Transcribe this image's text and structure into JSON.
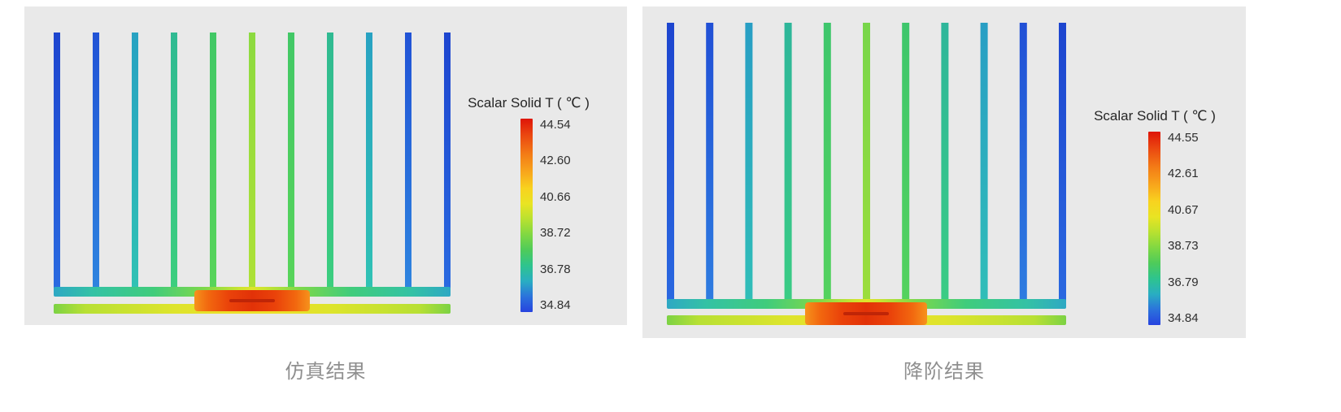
{
  "style": {
    "panel_background": "#e9e9e9",
    "caption_color": "#8f8f8f",
    "legend_text_color": "#262626"
  },
  "colorbar_stops": [
    [
      0.0,
      "#de1508"
    ],
    [
      0.08,
      "#ea4410"
    ],
    [
      0.18,
      "#f37a16"
    ],
    [
      0.28,
      "#f8a81c"
    ],
    [
      0.36,
      "#f8d21f"
    ],
    [
      0.44,
      "#e9e423"
    ],
    [
      0.52,
      "#b8e130"
    ],
    [
      0.6,
      "#80d842"
    ],
    [
      0.68,
      "#4ecb5a"
    ],
    [
      0.76,
      "#2ec48e"
    ],
    [
      0.84,
      "#29aec2"
    ],
    [
      0.92,
      "#2b72dc"
    ],
    [
      1.0,
      "#2743df"
    ]
  ],
  "panels": [
    {
      "caption": "仿真结果",
      "legend_title": "Scalar Solid T ( ℃ )",
      "ticks": [
        "44.54",
        "42.60",
        "40.66",
        "38.72",
        "36.78",
        "34.84"
      ],
      "fins": [
        {
          "top": "#1d45cf",
          "bottom": "#2a6ae0"
        },
        {
          "top": "#2153d6",
          "bottom": "#2e84df"
        },
        {
          "top": "#28a2c2",
          "bottom": "#30c2b4"
        },
        {
          "top": "#30ba92",
          "bottom": "#3cce7e"
        },
        {
          "top": "#42c866",
          "bottom": "#58d45a"
        },
        {
          "top": "#8cda40",
          "bottom": "#aee136"
        },
        {
          "top": "#42c866",
          "bottom": "#58d45a"
        },
        {
          "top": "#30ba92",
          "bottom": "#3cce7e"
        },
        {
          "top": "#28a2c2",
          "bottom": "#30c2b4"
        },
        {
          "top": "#2153d6",
          "bottom": "#2e84df"
        },
        {
          "top": "#1d45cf",
          "bottom": "#2a6ae0"
        }
      ],
      "channel_stops": [
        [
          0.0,
          "#2ea8c4"
        ],
        [
          0.1,
          "#34c2a4"
        ],
        [
          0.25,
          "#40cc7c"
        ],
        [
          0.38,
          "#7ed84a"
        ],
        [
          0.47,
          "#cce430"
        ],
        [
          0.5,
          "#e0e42c"
        ],
        [
          0.53,
          "#cce430"
        ],
        [
          0.62,
          "#7ed84a"
        ],
        [
          0.75,
          "#40cc7c"
        ],
        [
          0.9,
          "#34c2a4"
        ],
        [
          1.0,
          "#2ea8c4"
        ]
      ],
      "base_stops": [
        [
          0.0,
          "#7cd244"
        ],
        [
          0.08,
          "#b8e034"
        ],
        [
          0.3,
          "#dde42c"
        ],
        [
          0.45,
          "#ecdf28"
        ],
        [
          0.55,
          "#ecdf28"
        ],
        [
          0.7,
          "#dde42c"
        ],
        [
          0.92,
          "#b8e034"
        ],
        [
          1.0,
          "#7cd244"
        ]
      ],
      "heater_stops": [
        [
          0.0,
          "#f6921c"
        ],
        [
          0.12,
          "#f2680f"
        ],
        [
          0.3,
          "#ea420a"
        ],
        [
          0.5,
          "#e23208"
        ],
        [
          0.7,
          "#ea420a"
        ],
        [
          0.88,
          "#f2680f"
        ],
        [
          1.0,
          "#f6921c"
        ]
      ],
      "heater_core_color": "#bf2507"
    },
    {
      "caption": "降阶结果",
      "legend_title": "Scalar Solid T ( ℃ )",
      "ticks": [
        "44.55",
        "42.61",
        "40.67",
        "38.73",
        "36.79",
        "34.84"
      ],
      "fins": [
        {
          "top": "#1d45cf",
          "bottom": "#2a68e0"
        },
        {
          "top": "#2150d6",
          "bottom": "#2e7ce0"
        },
        {
          "top": "#289ec4",
          "bottom": "#30beb8"
        },
        {
          "top": "#2eb69a",
          "bottom": "#3acc84"
        },
        {
          "top": "#3ec66c",
          "bottom": "#54d25e"
        },
        {
          "top": "#78d64a",
          "bottom": "#9cdd3c"
        },
        {
          "top": "#3ec66c",
          "bottom": "#54d25e"
        },
        {
          "top": "#2eb69a",
          "bottom": "#3acc84"
        },
        {
          "top": "#289ec4",
          "bottom": "#30beb8"
        },
        {
          "top": "#2150d6",
          "bottom": "#2e7ce0"
        },
        {
          "top": "#1d45cf",
          "bottom": "#2a68e0"
        }
      ],
      "channel_stops": [
        [
          0.0,
          "#2ea8c4"
        ],
        [
          0.1,
          "#34c2a4"
        ],
        [
          0.25,
          "#40cc7c"
        ],
        [
          0.38,
          "#7ed84a"
        ],
        [
          0.47,
          "#cce430"
        ],
        [
          0.5,
          "#e0e42c"
        ],
        [
          0.53,
          "#cce430"
        ],
        [
          0.62,
          "#7ed84a"
        ],
        [
          0.75,
          "#40cc7c"
        ],
        [
          0.9,
          "#34c2a4"
        ],
        [
          1.0,
          "#2ea8c4"
        ]
      ],
      "base_stops": [
        [
          0.0,
          "#7cd244"
        ],
        [
          0.08,
          "#b8e034"
        ],
        [
          0.3,
          "#dde42c"
        ],
        [
          0.45,
          "#ecdf28"
        ],
        [
          0.55,
          "#ecdf28"
        ],
        [
          0.7,
          "#dde42c"
        ],
        [
          0.92,
          "#b8e034"
        ],
        [
          1.0,
          "#7cd244"
        ]
      ],
      "heater_stops": [
        [
          0.0,
          "#f6921c"
        ],
        [
          0.12,
          "#f2680f"
        ],
        [
          0.3,
          "#ea420a"
        ],
        [
          0.5,
          "#e23208"
        ],
        [
          0.7,
          "#ea420a"
        ],
        [
          0.88,
          "#f2680f"
        ],
        [
          1.0,
          "#f6921c"
        ]
      ],
      "heater_core_color": "#bf2507"
    }
  ],
  "chart_data": [
    {
      "type": "heatmap",
      "title": "Scalar Solid T ( ℃ )",
      "caption": "仿真结果",
      "subject": "heatsink temperature field: 11 vertical fins on a base plate with central heat source",
      "colorbar_tick_values": [
        44.54,
        42.6,
        40.66,
        38.72,
        36.78,
        34.84
      ],
      "value_range_c": [
        34.84,
        44.54
      ],
      "colormap": "rainbow (red = hot top of scale, blue = cold bottom of scale)",
      "legend_position": "right",
      "hot_region": "heat source block at base center (~44.5 ℃)",
      "cold_region": "outer fins (~34.8 ℃, blue)"
    },
    {
      "type": "heatmap",
      "title": "Scalar Solid T ( ℃ )",
      "caption": "降阶结果",
      "subject": "reduced-order-model heatsink temperature field: 11 vertical fins on a base plate with central heat source",
      "colorbar_tick_values": [
        44.55,
        42.61,
        40.67,
        38.73,
        36.79,
        34.84
      ],
      "value_range_c": [
        34.84,
        44.55
      ],
      "colormap": "rainbow (red = hot top of scale, blue = cold bottom of scale)",
      "legend_position": "right",
      "hot_region": "heat source block at base center (~44.5 ℃)",
      "cold_region": "outer fins (~34.8 ℃, blue)"
    }
  ]
}
